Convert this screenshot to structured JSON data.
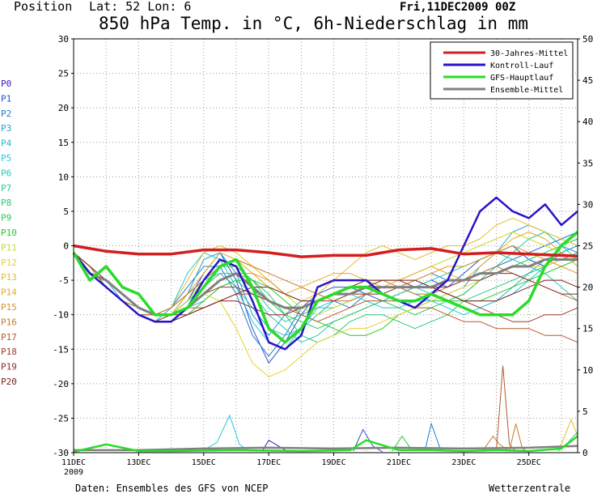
{
  "header": {
    "position_label": "Position",
    "lat_lon": "Lat: 52 Lon: 6",
    "datetime": "Fri,11DEC2009 00Z",
    "title": "850 hPa Temp. in °C, 6h-Niederschlag in mm"
  },
  "footer": {
    "source": "Daten: Ensembles des GFS von NCEP",
    "brand": "Wetterzentrale"
  },
  "members": [
    {
      "label": "P0",
      "color": "#3c14c8"
    },
    {
      "label": "P1",
      "color": "#2850c8"
    },
    {
      "label": "P2",
      "color": "#2878c8"
    },
    {
      "label": "P3",
      "color": "#28a0c8"
    },
    {
      "label": "P4",
      "color": "#28b4d0"
    },
    {
      "label": "P5",
      "color": "#28c8d8"
    },
    {
      "label": "P6",
      "color": "#28c8b4"
    },
    {
      "label": "P7",
      "color": "#28c8a0"
    },
    {
      "label": "P8",
      "color": "#28c878"
    },
    {
      "label": "P9",
      "color": "#28c850"
    },
    {
      "label": "P10",
      "color": "#28c828"
    },
    {
      "label": "P11",
      "color": "#c8dc28"
    },
    {
      "label": "P12",
      "color": "#e6d228"
    },
    {
      "label": "P13",
      "color": "#e6be28"
    },
    {
      "label": "P14",
      "color": "#e6aa28"
    },
    {
      "label": "P15",
      "color": "#dc9628"
    },
    {
      "label": "P16",
      "color": "#c87828"
    },
    {
      "label": "P17",
      "color": "#b45a28"
    },
    {
      "label": "P18",
      "color": "#a03c28"
    },
    {
      "label": "P19",
      "color": "#8c2828"
    },
    {
      "label": "P20",
      "color": "#781e1e"
    }
  ],
  "chart_data": {
    "type": "line",
    "x_tick_labels": [
      "11DEC",
      "13DEC",
      "15DEC",
      "17DEC",
      "19DEC",
      "21DEC",
      "23DEC",
      "25DEC"
    ],
    "x_sub_label": "2009",
    "x_days_range": [
      0,
      15.5
    ],
    "y_left_label": "°C",
    "y_left_lim": [
      -30,
      30
    ],
    "y_left_ticks": [
      30,
      25,
      20,
      15,
      10,
      5,
      0,
      -5,
      -10,
      -15,
      -20,
      -25,
      -30
    ],
    "y_right_label": "mm",
    "y_right_lim": [
      0,
      50
    ],
    "y_right_ticks": [
      50,
      45,
      40,
      35,
      30,
      25,
      20,
      15,
      10,
      5,
      0
    ],
    "grid": true,
    "legend_position": "top-right",
    "series": [
      {
        "name": "30-Jahres-Mittel",
        "color": "#d21e1e",
        "width": 3.5,
        "x": [
          0,
          1,
          2,
          3,
          4,
          5,
          6,
          7,
          8,
          9,
          10,
          11,
          12,
          13,
          14,
          15.5
        ],
        "y": [
          0,
          -0.8,
          -1.2,
          -1.2,
          -0.6,
          -0.6,
          -1.0,
          -1.6,
          -1.4,
          -1.4,
          -0.6,
          -0.4,
          -1.2,
          -1.0,
          -1.2,
          -1.5
        ]
      },
      {
        "name": "Kontroll-Lauf",
        "color": "#2814c8",
        "width": 2.5,
        "x": [
          0,
          0.5,
          1,
          1.5,
          2,
          2.5,
          3,
          3.5,
          4,
          4.5,
          5,
          5.5,
          6,
          6.5,
          7,
          7.5,
          8,
          8.5,
          9,
          9.5,
          10,
          10.5,
          11,
          11.5,
          12,
          12.5,
          13,
          13.5,
          14,
          14.5,
          15,
          15.5
        ],
        "y": [
          -1,
          -4,
          -6,
          -8,
          -10,
          -11,
          -11,
          -9,
          -5,
          -2,
          -3,
          -8,
          -14,
          -15,
          -13,
          -6,
          -5,
          -5,
          -5,
          -7,
          -8,
          -9,
          -7,
          -5,
          0,
          5,
          7,
          5,
          4,
          6,
          3,
          5
        ]
      },
      {
        "name": "GFS-Hauptlauf",
        "color": "#28dc28",
        "width": 3.5,
        "x": [
          0,
          0.5,
          1,
          1.5,
          2,
          2.5,
          3,
          3.5,
          4,
          4.5,
          5,
          5.5,
          6,
          6.5,
          7,
          7.5,
          8,
          8.5,
          9,
          9.5,
          10,
          10.5,
          11,
          11.5,
          12,
          12.5,
          13,
          13.5,
          14,
          14.5,
          15,
          15.5
        ],
        "y": [
          -1,
          -5,
          -3,
          -6,
          -7,
          -10,
          -10,
          -9,
          -6,
          -3,
          -2,
          -6,
          -12,
          -14,
          -12,
          -8,
          -7,
          -6,
          -6,
          -7,
          -8,
          -8,
          -7,
          -8,
          -9,
          -10,
          -10,
          -10,
          -8,
          -3,
          0,
          2
        ]
      },
      {
        "name": "Ensemble-Mittel",
        "color": "#808080",
        "width": 3,
        "x": [
          0,
          0.5,
          1,
          1.5,
          2,
          2.5,
          3,
          3.5,
          4,
          4.5,
          5,
          5.5,
          6,
          6.5,
          7,
          7.5,
          8,
          8.5,
          9,
          9.5,
          10,
          10.5,
          11,
          11.5,
          12,
          12.5,
          13,
          13.5,
          14,
          14.5,
          15,
          15.5
        ],
        "y": [
          -1,
          -4,
          -5,
          -7,
          -9,
          -10,
          -10,
          -9,
          -7,
          -5,
          -4,
          -6,
          -8,
          -9,
          -9,
          -8,
          -7,
          -7,
          -6,
          -6,
          -6,
          -6,
          -6,
          -5,
          -5,
          -4,
          -4,
          -3,
          -3,
          -2,
          -2,
          -2
        ]
      }
    ],
    "members_temp_y": [
      [
        -1,
        -4,
        -6,
        -8,
        -10,
        -11,
        -11,
        -9,
        -5,
        -2,
        -3,
        -8,
        -14,
        -15,
        -13,
        -6,
        -5,
        -5,
        -5,
        -7,
        -8,
        -9,
        -7,
        -5,
        0,
        5,
        7,
        5,
        4,
        6,
        3,
        5
      ],
      [
        -1,
        -3,
        -5,
        -7,
        -9,
        -10,
        -10,
        -8,
        -4,
        -1,
        -5,
        -12,
        -17,
        -14,
        -10,
        -7,
        -6,
        -6,
        -7,
        -8,
        -7,
        -6,
        -5,
        -6,
        -4,
        -2,
        -1,
        0,
        -2,
        -3,
        -1,
        0
      ],
      [
        -1,
        -4,
        -6,
        -8,
        -10,
        -11,
        -9,
        -6,
        -3,
        -3,
        -7,
        -13,
        -16,
        -13,
        -9,
        -7,
        -8,
        -9,
        -7,
        -6,
        -6,
        -5,
        -4,
        -5,
        -5,
        -4,
        -3,
        -2,
        -1,
        0,
        1,
        2
      ],
      [
        -1,
        -3,
        -5,
        -7,
        -9,
        -10,
        -10,
        -7,
        -2,
        -1,
        -4,
        -10,
        -13,
        -10,
        -8,
        -8,
        -7,
        -6,
        -5,
        -5,
        -6,
        -7,
        -8,
        -7,
        -6,
        -3,
        -1,
        2,
        3,
        2,
        0,
        -1
      ],
      [
        -1,
        -4,
        -5,
        -8,
        -10,
        -11,
        -10,
        -8,
        -5,
        -4,
        -6,
        -9,
        -12,
        -13,
        -12,
        -10,
        -8,
        -7,
        -7,
        -7,
        -6,
        -5,
        -6,
        -7,
        -8,
        -9,
        -8,
        -6,
        -4,
        -2,
        -1,
        0
      ],
      [
        -1,
        -3,
        -6,
        -8,
        -10,
        -11,
        -9,
        -4,
        -1,
        -2,
        -6,
        -11,
        -14,
        -15,
        -12,
        -9,
        -8,
        -7,
        -8,
        -9,
        -9,
        -8,
        -8,
        -9,
        -10,
        -9,
        -8,
        -7,
        -5,
        -3,
        0,
        2
      ],
      [
        -1,
        -4,
        -6,
        -8,
        -9,
        -10,
        -10,
        -9,
        -8,
        -6,
        -5,
        -7,
        -10,
        -12,
        -14,
        -13,
        -11,
        -10,
        -9,
        -8,
        -7,
        -6,
        -5,
        -4,
        -3,
        -2,
        -1,
        -2,
        -3,
        -4,
        -6,
        -8
      ],
      [
        -1,
        -3,
        -5,
        -7,
        -9,
        -10,
        -10,
        -8,
        -6,
        -4,
        -4,
        -6,
        -9,
        -11,
        -10,
        -9,
        -9,
        -8,
        -7,
        -6,
        -6,
        -6,
        -7,
        -8,
        -7,
        -5,
        -3,
        -1,
        1,
        2,
        0,
        -2
      ],
      [
        -1,
        -4,
        -6,
        -8,
        -10,
        -11,
        -10,
        -9,
        -7,
        -5,
        -4,
        -5,
        -7,
        -10,
        -13,
        -14,
        -13,
        -11,
        -10,
        -10,
        -11,
        -12,
        -11,
        -10,
        -8,
        -7,
        -6,
        -5,
        -4,
        -3,
        -2,
        -1
      ],
      [
        -1,
        -3,
        -6,
        -8,
        -10,
        -10,
        -9,
        -7,
        -5,
        -3,
        -3,
        -5,
        -8,
        -10,
        -11,
        -12,
        -11,
        -10,
        -9,
        -8,
        -9,
        -10,
        -9,
        -8,
        -7,
        -5,
        -4,
        -3,
        -2,
        -1,
        0,
        1
      ],
      [
        -1,
        -4,
        -6,
        -8,
        -10,
        -11,
        -11,
        -10,
        -8,
        -6,
        -5,
        -5,
        -6,
        -8,
        -10,
        -11,
        -12,
        -13,
        -13,
        -12,
        -10,
        -9,
        -8,
        -8,
        -8,
        -8,
        -7,
        -6,
        -5,
        -4,
        -3,
        -2
      ],
      [
        -1,
        -3,
        -5,
        -7,
        -9,
        -10,
        -10,
        -8,
        -5,
        -3,
        -2,
        -3,
        -5,
        -7,
        -9,
        -10,
        -9,
        -8,
        -7,
        -6,
        -5,
        -4,
        -3,
        -2,
        -1,
        0,
        1,
        2,
        1,
        0,
        -1,
        -2
      ],
      [
        -1,
        -4,
        -6,
        -8,
        -10,
        -11,
        -11,
        -9,
        -7,
        -8,
        -12,
        -17,
        -19,
        -18,
        -16,
        -14,
        -13,
        -12,
        -12,
        -11,
        -10,
        -9,
        -8,
        -7,
        -6,
        -5,
        -4,
        -3,
        -3,
        -3,
        -2,
        -2
      ],
      [
        -1,
        -3,
        -5,
        -7,
        -9,
        -10,
        -9,
        -5,
        -1,
        0,
        -1,
        -3,
        -5,
        -7,
        -8,
        -7,
        -5,
        -3,
        -1,
        0,
        -1,
        -2,
        -1,
        0,
        0,
        1,
        3,
        4,
        3,
        2,
        1,
        0
      ],
      [
        -1,
        -4,
        -6,
        -8,
        -10,
        -11,
        -10,
        -7,
        -4,
        -1,
        -2,
        -4,
        -6,
        -7,
        -6,
        -5,
        -4,
        -4,
        -5,
        -6,
        -5,
        -4,
        -3,
        -4,
        -5,
        -3,
        -1,
        1,
        2,
        1,
        -1,
        -3
      ],
      [
        -1,
        -3,
        -5,
        -7,
        -9,
        -10,
        -10,
        -9,
        -7,
        -5,
        -4,
        -4,
        -5,
        -7,
        -8,
        -8,
        -7,
        -6,
        -5,
        -5,
        -6,
        -5,
        -4,
        -3,
        -3,
        -2,
        -1,
        0,
        -1,
        -2,
        -3,
        -4
      ],
      [
        -1,
        -4,
        -6,
        -8,
        -9,
        -10,
        -9,
        -7,
        -5,
        -3,
        -2,
        -3,
        -4,
        -5,
        -6,
        -7,
        -8,
        -8,
        -7,
        -6,
        -6,
        -7,
        -7,
        -6,
        -5,
        -4,
        -3,
        -4,
        -5,
        -6,
        -7,
        -8
      ],
      [
        -1,
        -3,
        -6,
        -8,
        -10,
        -10,
        -10,
        -9,
        -9,
        -8,
        -7,
        -7,
        -8,
        -9,
        -10,
        -11,
        -10,
        -9,
        -8,
        -8,
        -8,
        -9,
        -9,
        -10,
        -11,
        -11,
        -12,
        -12,
        -12,
        -13,
        -13,
        -14
      ],
      [
        -1,
        -4,
        -6,
        -8,
        -10,
        -11,
        -10,
        -9,
        -7,
        -6,
        -6,
        -7,
        -8,
        -9,
        -9,
        -8,
        -8,
        -7,
        -7,
        -7,
        -6,
        -6,
        -6,
        -7,
        -8,
        -9,
        -10,
        -11,
        -11,
        -10,
        -10,
        -9
      ],
      [
        -1,
        -3,
        -5,
        -7,
        -9,
        -10,
        -10,
        -10,
        -9,
        -8,
        -8,
        -9,
        -10,
        -10,
        -9,
        -8,
        -7,
        -6,
        -5,
        -5,
        -5,
        -6,
        -6,
        -6,
        -5,
        -5,
        -4,
        -4,
        -5,
        -6,
        -7,
        -7
      ],
      [
        -1,
        -4,
        -6,
        -8,
        -10,
        -11,
        -11,
        -10,
        -9,
        -8,
        -7,
        -6,
        -6,
        -7,
        -8,
        -8,
        -7,
        -6,
        -6,
        -5,
        -5,
        -5,
        -6,
        -7,
        -8,
        -8,
        -8,
        -7,
        -6,
        -5,
        -5,
        -6
      ]
    ],
    "precip_mm": [
      {
        "color": "#28c8d8",
        "x": [
          4,
          4.4,
          4.8,
          5.1,
          5.4
        ],
        "y": [
          0.3,
          1.2,
          4.5,
          1.0,
          0.2
        ]
      },
      {
        "color": "#2850c8",
        "x": [
          8.6,
          8.9,
          9.2,
          9.5
        ],
        "y": [
          0.2,
          2.8,
          0.8,
          0.1
        ]
      },
      {
        "color": "#2878c8",
        "x": [
          10.8,
          11.0,
          11.3
        ],
        "y": [
          0.2,
          3.5,
          0.2
        ]
      },
      {
        "color": "#3c14c8",
        "x": [
          5.8,
          6.0,
          6.3,
          6.6
        ],
        "y": [
          0.2,
          1.5,
          0.8,
          0.1
        ]
      },
      {
        "color": "#28c828",
        "x": [
          9.8,
          10.1,
          10.4
        ],
        "y": [
          0.2,
          2.0,
          0.3
        ]
      },
      {
        "color": "#c87828",
        "x": [
          12.6,
          12.9,
          13.1,
          13.4
        ],
        "y": [
          0.3,
          2.0,
          1.0,
          0.2
        ]
      },
      {
        "color": "#b45a28",
        "x": [
          13.0,
          13.2,
          13.4,
          13.6
        ],
        "y": [
          0.2,
          10.5,
          1.0,
          0.2
        ]
      },
      {
        "color": "#c87828",
        "x": [
          13.4,
          13.6,
          13.8,
          14.0
        ],
        "y": [
          0.2,
          3.5,
          0.5,
          0.1
        ]
      },
      {
        "color": "#e6be28",
        "x": [
          14.8,
          15.0,
          15.3,
          15.5
        ],
        "y": [
          0.3,
          1.0,
          4.0,
          2.0
        ]
      },
      {
        "color": "#28c878",
        "x": [
          14.9,
          15.2,
          15.5
        ],
        "y": [
          0.2,
          1.2,
          2.5
        ]
      }
    ],
    "gfs_precip_mm": {
      "x": [
        0,
        1,
        2,
        3,
        5,
        7,
        8.5,
        9,
        10,
        11,
        12,
        13,
        14,
        15,
        15.5
      ],
      "y": [
        0.1,
        1.0,
        0.2,
        0.2,
        0.3,
        0.2,
        0.3,
        1.5,
        0.3,
        0.3,
        0.2,
        0.3,
        0.2,
        0.5,
        2.0
      ]
    },
    "mean_precip_mm": {
      "x": [
        0,
        2,
        4,
        6,
        8,
        10,
        12,
        14,
        15.5
      ],
      "y": [
        0.3,
        0.3,
        0.5,
        0.6,
        0.5,
        0.6,
        0.5,
        0.6,
        0.8
      ]
    }
  }
}
